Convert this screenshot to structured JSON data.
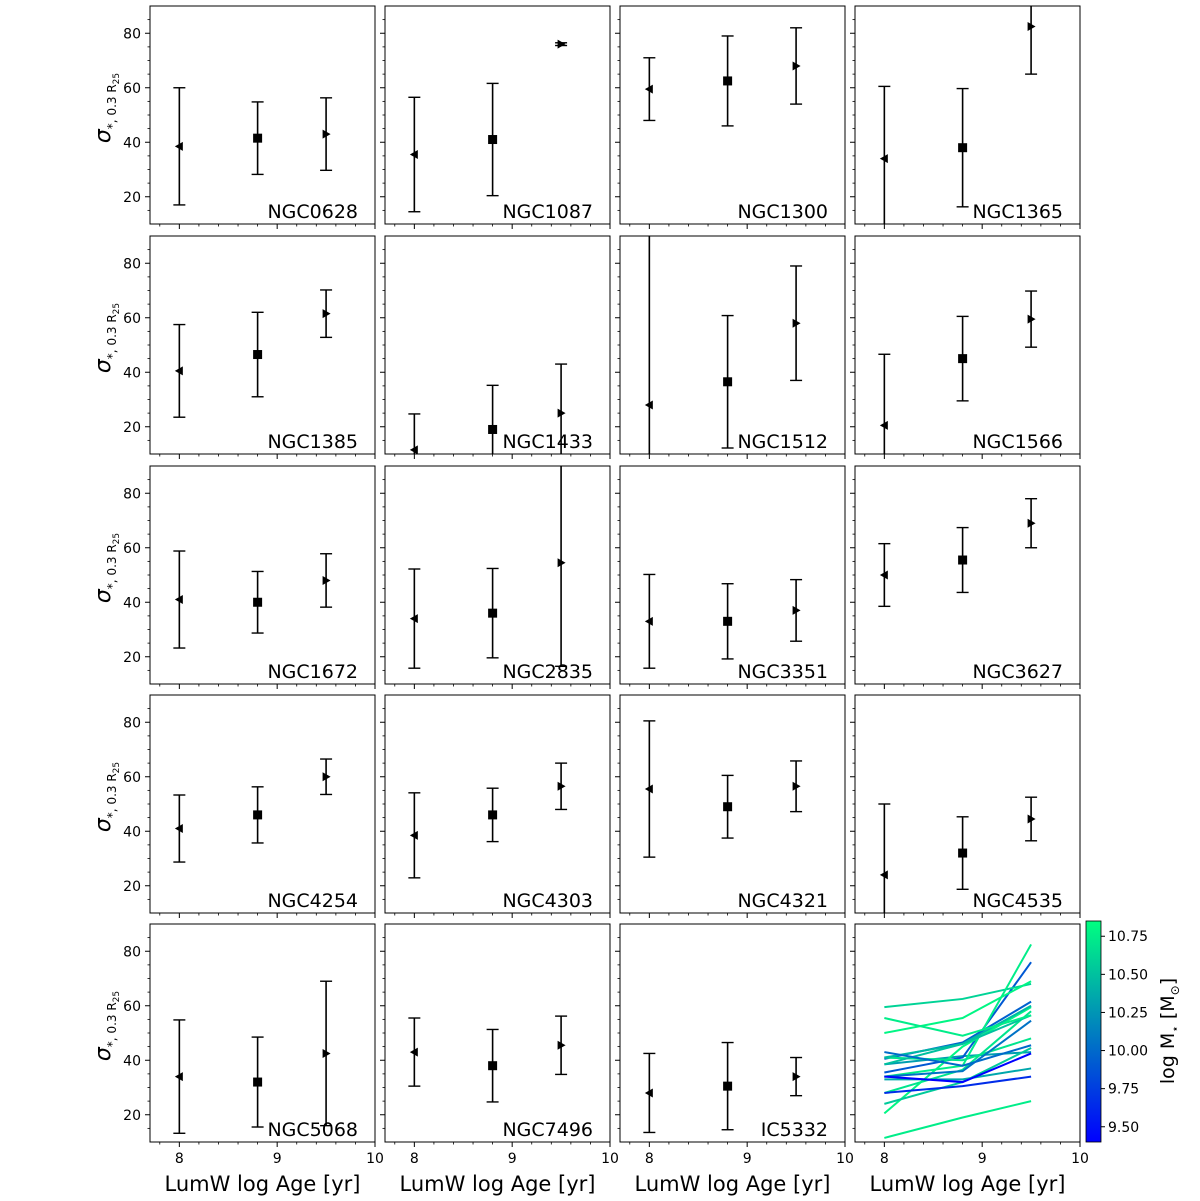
{
  "figure": {
    "x_label": "LumW log Age [yr]",
    "y_label_main": "σ",
    "y_label_sub": "*, 0.3 R",
    "y_label_subsub": "25",
    "colorbar_label": "log M",
    "colorbar_label_sub": "⋆",
    "colorbar_label_unit": "[M",
    "colorbar_label_unit_sub": "⊙",
    "colorbar_label_close": "]"
  },
  "chart_data": {
    "type": "scatter",
    "title": "",
    "xlabel": "LumW log Age [yr]",
    "ylabel": "σ*, 0.3 R25",
    "xlim": [
      7.7,
      10
    ],
    "ylim": [
      10,
      90
    ],
    "x_ticks": [
      8,
      9,
      10
    ],
    "y_ticks": [
      20,
      40,
      60,
      80
    ],
    "colorbar": {
      "label": "log M⋆ [M⊙]",
      "range": [
        9.4,
        10.85
      ],
      "ticks": [
        "9.50",
        "9.75",
        "10.00",
        "10.25",
        "10.50",
        "10.75"
      ],
      "colormap": "winter",
      "colors": [
        "#0000ff",
        "#00ff80"
      ]
    },
    "galaxies": [
      {
        "name": "NGC0628",
        "x": [
          8,
          8.8,
          9.5
        ],
        "y": [
          38.5,
          41.5,
          43
        ],
        "err": [
          21.5,
          13.3,
          13.3
        ],
        "logM": 10.3
      },
      {
        "name": "NGC1087",
        "x": [
          8,
          8.8,
          9.5
        ],
        "y": [
          35.5,
          41,
          76
        ],
        "err": [
          21,
          20.6,
          0.5
        ],
        "logM": 9.9
      },
      {
        "name": "NGC1300",
        "x": [
          8,
          8.8,
          9.5
        ],
        "y": [
          59.5,
          62.5,
          68
        ],
        "err": [
          11.5,
          16.5,
          14
        ],
        "logM": 10.6
      },
      {
        "name": "NGC1365",
        "x": [
          8,
          8.8,
          9.5
        ],
        "y": [
          34,
          38,
          82.5
        ],
        "err": [
          26.5,
          21.7,
          17.5
        ],
        "logM": 10.75
      },
      {
        "name": "NGC1385",
        "x": [
          8,
          8.8,
          9.5
        ],
        "y": [
          40.5,
          46.5,
          61.5
        ],
        "err": [
          17,
          15.5,
          8.7
        ],
        "logM": 9.95
      },
      {
        "name": "NGC1433",
        "x": [
          8,
          8.8,
          9.5
        ],
        "y": [
          11.5,
          19,
          25
        ],
        "err": [
          13.2,
          16.2,
          18
        ],
        "logM": 10.75
      },
      {
        "name": "NGC1512",
        "x": [
          8,
          8.8,
          9.5
        ],
        "y": [
          28,
          36.5,
          58
        ],
        "err": [
          65,
          24.3,
          21
        ],
        "logM": 10.7
      },
      {
        "name": "NGC1566",
        "x": [
          8,
          8.8,
          9.5
        ],
        "y": [
          20.5,
          45,
          59.5
        ],
        "err": [
          26.1,
          15.5,
          10.3
        ],
        "logM": 10.8
      },
      {
        "name": "NGC1672",
        "x": [
          8,
          8.8,
          9.5
        ],
        "y": [
          41,
          40,
          48
        ],
        "err": [
          17.8,
          11.3,
          9.8
        ],
        "logM": 10.7
      },
      {
        "name": "NGC2835",
        "x": [
          8,
          8.8,
          9.5
        ],
        "y": [
          34,
          36,
          54.5
        ],
        "err": [
          18.2,
          16.4,
          38
        ],
        "logM": 10.05
      },
      {
        "name": "NGC3351",
        "x": [
          8,
          8.8,
          9.5
        ],
        "y": [
          33,
          33,
          37
        ],
        "err": [
          17.2,
          13.8,
          11.3
        ],
        "logM": 10.35
      },
      {
        "name": "NGC3627",
        "x": [
          8,
          8.8,
          9.5
        ],
        "y": [
          50,
          55.5,
          69
        ],
        "err": [
          11.5,
          11.9,
          9
        ],
        "logM": 10.8
      },
      {
        "name": "NGC4254",
        "x": [
          8,
          8.8,
          9.5
        ],
        "y": [
          41,
          46,
          60
        ],
        "err": [
          12.3,
          10.3,
          6.5
        ],
        "logM": 10.45
      },
      {
        "name": "NGC4303",
        "x": [
          8,
          8.8,
          9.5
        ],
        "y": [
          38.5,
          46,
          56.5
        ],
        "err": [
          15.6,
          9.8,
          8.5
        ],
        "logM": 10.5
      },
      {
        "name": "NGC4321",
        "x": [
          8,
          8.8,
          9.5
        ],
        "y": [
          55.5,
          49,
          56.5
        ],
        "err": [
          25,
          11.5,
          9.3
        ],
        "logM": 10.75
      },
      {
        "name": "NGC4535",
        "x": [
          8,
          8.8,
          9.5
        ],
        "y": [
          24,
          32,
          44.5
        ],
        "err": [
          26,
          13.3,
          8
        ],
        "logM": 10.55
      },
      {
        "name": "NGC5068",
        "x": [
          8,
          8.8,
          9.5
        ],
        "y": [
          34,
          32,
          42.5
        ],
        "err": [
          20.8,
          16.5,
          26.5
        ],
        "logM": 9.4
      },
      {
        "name": "NGC7496",
        "x": [
          8,
          8.8,
          9.5
        ],
        "y": [
          43,
          38,
          45.5
        ],
        "err": [
          12.5,
          13.3,
          10.7
        ],
        "logM": 10.0
      },
      {
        "name": "IC5332",
        "x": [
          8,
          8.8,
          9.5
        ],
        "y": [
          28,
          30.5,
          34
        ],
        "err": [
          14.5,
          16,
          7
        ],
        "logM": 9.65
      }
    ],
    "markers": [
      "triangle-left",
      "square",
      "triangle-right"
    ],
    "last_panel": {
      "type": "line",
      "description_source": "galaxies",
      "color_by": "logM"
    }
  }
}
